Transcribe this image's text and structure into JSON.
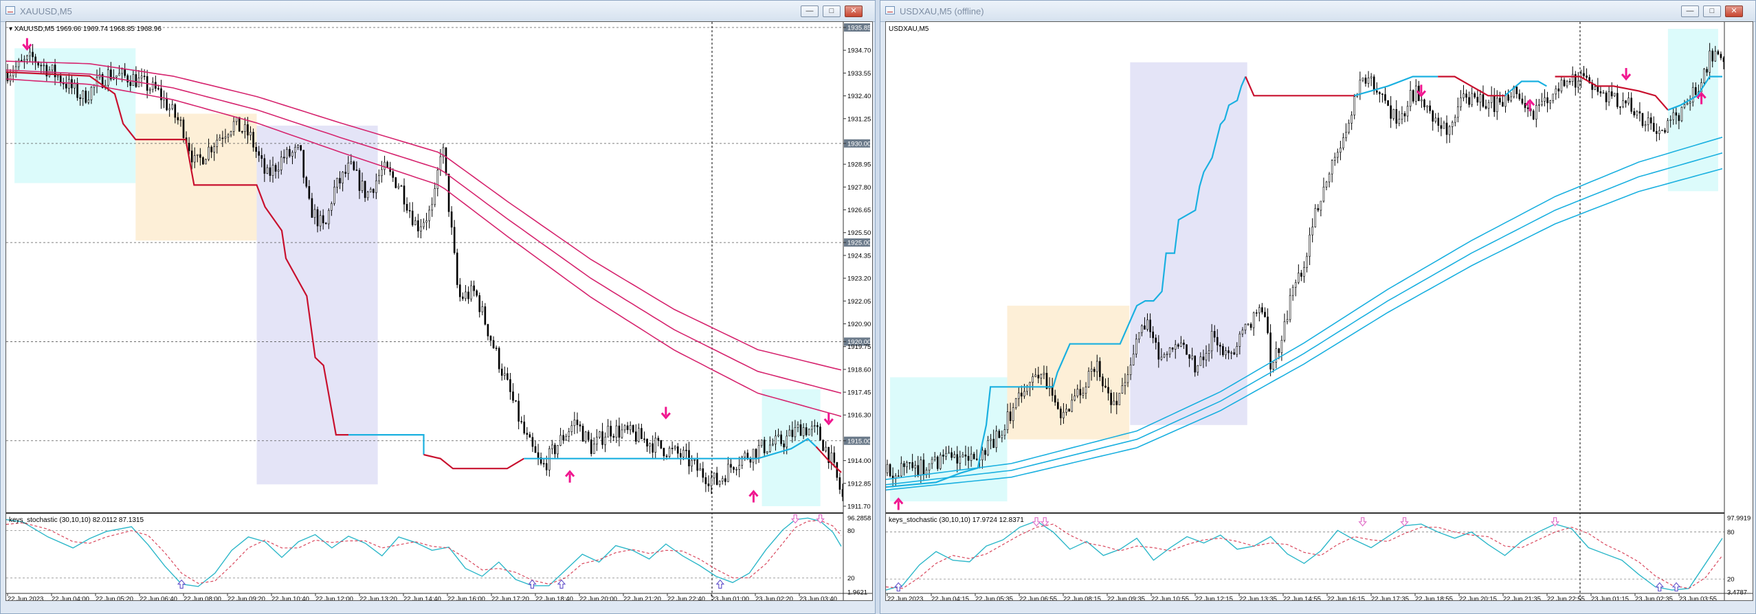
{
  "windows": [
    {
      "title": "XAUUSD,M5",
      "symbol_label": "XAUUSD,M5",
      "ohlc_readout": "1969.66 1969.74 1968.85 1968.96",
      "indicator_label": "keys_stochastic (30,10,10) 82.0112 87.1315",
      "price_ticks": [
        "1935.85",
        "1934.70",
        "1933.55",
        "1932.40",
        "1931.25",
        "1930.00",
        "1928.95",
        "1927.80",
        "1926.65",
        "1925.50",
        "1925.00",
        "1924.35",
        "1923.20",
        "1922.05",
        "1920.90",
        "1920.00",
        "1919.75",
        "1918.60",
        "1917.45",
        "1916.30",
        "1915.00",
        "1914.00",
        "1912.85",
        "1911.70"
      ],
      "highlighted_ticks": [
        "1935.85",
        "1930.00",
        "1925.00",
        "1920.00",
        "1915.00"
      ],
      "stoch_ticks": [
        "96.2858",
        "80",
        "20",
        "1.9621"
      ],
      "time_ticks": [
        "22 Jun 2023",
        "22 Jun 04:00",
        "22 Jun 05:20",
        "22 Jun 06:40",
        "22 Jun 08:00",
        "22 Jun 09:20",
        "22 Jun 10:40",
        "22 Jun 12:00",
        "22 Jun 13:20",
        "22 Jun 14:40",
        "22 Jun 16:00",
        "22 Jun 17:20",
        "22 Jun 18:40",
        "22 Jun 20:00",
        "22 Jun 21:20",
        "22 Jun 22:40",
        "23 Jun 01:00",
        "23 Jun 02:20",
        "23 Jun 03:40"
      ]
    },
    {
      "title": "USDXAU,M5 (offline)",
      "symbol_label": "USDXAU,M5",
      "indicator_label": "keys_stochastic (30,10,10) 17.9724 12.8371",
      "stoch_ticks": [
        "97.9919",
        "80",
        "20",
        "3.4787"
      ],
      "time_ticks": [
        "22 Jun 2023",
        "22 Jun 04:15",
        "22 Jun 05:35",
        "22 Jun 06:55",
        "22 Jun 08:15",
        "22 Jun 09:35",
        "22 Jun 10:55",
        "22 Jun 12:15",
        "22 Jun 13:35",
        "22 Jun 14:55",
        "22 Jun 16:15",
        "22 Jun 17:35",
        "22 Jun 18:55",
        "22 Jun 20:15",
        "22 Jun 21:35",
        "22 Jun 22:55",
        "23 Jun 01:15",
        "23 Jun 02:35",
        "23 Jun 03:55"
      ]
    }
  ],
  "window_buttons": {
    "minimize": "—",
    "maximize": "□",
    "close": "✕"
  },
  "colors": {
    "candle": "#000000",
    "ema_band": "#d6246e",
    "trail_down": "#c8102e",
    "trail_up": "#1ab0e0",
    "arrow": "#f0168f",
    "stoch_main": "#2cb7c9",
    "stoch_signal": "#d9475d",
    "zone_cyan": "#dcfbfb",
    "zone_orange": "#fdefd7",
    "zone_lavender": "#e4e4f7",
    "stoch_arrow": "#6a5acd",
    "stoch_arrow_top": "#e070c8"
  },
  "chart_data": [
    {
      "type": "candlestick",
      "title": "XAUUSD,M5",
      "ylim": [
        1911.7,
        1935.85
      ],
      "x": [
        "22 Jun 2023",
        "22 Jun 04:00",
        "22 Jun 05:20",
        "22 Jun 06:40",
        "22 Jun 08:00",
        "22 Jun 09:20",
        "22 Jun 10:40",
        "22 Jun 12:00",
        "22 Jun 13:20",
        "22 Jun 14:40",
        "22 Jun 16:00",
        "22 Jun 17:20",
        "22 Jun 18:40",
        "22 Jun 20:00",
        "22 Jun 21:20",
        "22 Jun 22:40",
        "23 Jun 01:00",
        "23 Jun 02:20",
        "23 Jun 03:40"
      ],
      "close_path": [
        [
          0,
          1933.6
        ],
        [
          0.03,
          1934.3
        ],
        [
          0.06,
          1933.4
        ],
        [
          0.09,
          1932.3
        ],
        [
          0.12,
          1933.5
        ],
        [
          0.15,
          1933.3
        ],
        [
          0.18,
          1932.6
        ],
        [
          0.21,
          1930.8
        ],
        [
          0.225,
          1928.9
        ],
        [
          0.25,
          1930.2
        ],
        [
          0.27,
          1931.0
        ],
        [
          0.29,
          1930.4
        ],
        [
          0.31,
          1928.3
        ],
        [
          0.33,
          1929.3
        ],
        [
          0.35,
          1929.6
        ],
        [
          0.36,
          1926.9
        ],
        [
          0.38,
          1925.6
        ],
        [
          0.39,
          1927.6
        ],
        [
          0.41,
          1928.8
        ],
        [
          0.43,
          1927.4
        ],
        [
          0.45,
          1928.7
        ],
        [
          0.47,
          1927.9
        ],
        [
          0.49,
          1925.8
        ],
        [
          0.51,
          1926.7
        ],
        [
          0.52,
          1930.2
        ],
        [
          0.54,
          1922.2
        ],
        [
          0.56,
          1922.5
        ],
        [
          0.58,
          1920.0
        ],
        [
          0.6,
          1917.6
        ],
        [
          0.62,
          1915.2
        ],
        [
          0.64,
          1913.6
        ],
        [
          0.66,
          1914.9
        ],
        [
          0.68,
          1916.0
        ],
        [
          0.7,
          1914.6
        ],
        [
          0.72,
          1915.6
        ],
        [
          0.75,
          1915.3
        ],
        [
          0.78,
          1914.7
        ],
        [
          0.81,
          1914.2
        ],
        [
          0.83,
          1913.4
        ],
        [
          0.85,
          1912.9
        ],
        [
          0.87,
          1913.9
        ],
        [
          0.9,
          1914.6
        ],
        [
          0.93,
          1915.0
        ],
        [
          0.95,
          1915.7
        ],
        [
          0.97,
          1915.4
        ],
        [
          0.985,
          1914.2
        ],
        [
          1.0,
          1912.1
        ]
      ],
      "ema_band_center": [
        [
          0,
          1933.7
        ],
        [
          0.1,
          1933.5
        ],
        [
          0.2,
          1932.8
        ],
        [
          0.3,
          1931.7
        ],
        [
          0.4,
          1930.3
        ],
        [
          0.52,
          1928.7
        ],
        [
          0.6,
          1926.2
        ],
        [
          0.7,
          1923.2
        ],
        [
          0.8,
          1920.6
        ],
        [
          0.9,
          1918.5
        ],
        [
          1.0,
          1917.4
        ]
      ],
      "annotations": [
        {
          "type": "arrow_down",
          "x": 0.025,
          "y": 1935.0
        },
        {
          "type": "arrow_up",
          "x": 0.675,
          "y": 1913.2
        },
        {
          "type": "arrow_down",
          "x": 0.79,
          "y": 1916.4
        },
        {
          "type": "arrow_up",
          "x": 0.895,
          "y": 1912.2
        },
        {
          "type": "arrow_down",
          "x": 0.985,
          "y": 1916.1
        }
      ],
      "stochastic": {
        "levels": [
          80,
          20
        ],
        "ylim": [
          1.9621,
          96.2858
        ],
        "main": [
          [
            0,
            94
          ],
          [
            0.02,
            91
          ],
          [
            0.05,
            72
          ],
          [
            0.08,
            58
          ],
          [
            0.1,
            70
          ],
          [
            0.12,
            79
          ],
          [
            0.15,
            85
          ],
          [
            0.17,
            62
          ],
          [
            0.19,
            35
          ],
          [
            0.21,
            12
          ],
          [
            0.23,
            9
          ],
          [
            0.25,
            26
          ],
          [
            0.27,
            55
          ],
          [
            0.29,
            72
          ],
          [
            0.31,
            66
          ],
          [
            0.33,
            46
          ],
          [
            0.35,
            66
          ],
          [
            0.37,
            75
          ],
          [
            0.39,
            58
          ],
          [
            0.41,
            73
          ],
          [
            0.43,
            64
          ],
          [
            0.45,
            48
          ],
          [
            0.47,
            72
          ],
          [
            0.49,
            65
          ],
          [
            0.51,
            55
          ],
          [
            0.53,
            59
          ],
          [
            0.55,
            32
          ],
          [
            0.57,
            22
          ],
          [
            0.59,
            40
          ],
          [
            0.61,
            18
          ],
          [
            0.63,
            10
          ],
          [
            0.65,
            10
          ],
          [
            0.67,
            30
          ],
          [
            0.69,
            50
          ],
          [
            0.71,
            40
          ],
          [
            0.73,
            61
          ],
          [
            0.75,
            55
          ],
          [
            0.77,
            44
          ],
          [
            0.79,
            63
          ],
          [
            0.81,
            48
          ],
          [
            0.83,
            36
          ],
          [
            0.85,
            22
          ],
          [
            0.87,
            14
          ],
          [
            0.89,
            26
          ],
          [
            0.91,
            56
          ],
          [
            0.93,
            81
          ],
          [
            0.945,
            94
          ],
          [
            0.96,
            96
          ],
          [
            0.975,
            92
          ],
          [
            0.99,
            78
          ],
          [
            1.0,
            60
          ]
        ],
        "signal": [
          [
            0,
            88
          ],
          [
            0.02,
            90
          ],
          [
            0.05,
            82
          ],
          [
            0.08,
            66
          ],
          [
            0.1,
            64
          ],
          [
            0.12,
            72
          ],
          [
            0.15,
            80
          ],
          [
            0.17,
            74
          ],
          [
            0.19,
            52
          ],
          [
            0.21,
            26
          ],
          [
            0.23,
            13
          ],
          [
            0.25,
            16
          ],
          [
            0.27,
            36
          ],
          [
            0.29,
            58
          ],
          [
            0.31,
            68
          ],
          [
            0.33,
            58
          ],
          [
            0.35,
            58
          ],
          [
            0.37,
            68
          ],
          [
            0.39,
            65
          ],
          [
            0.41,
            67
          ],
          [
            0.43,
            67
          ],
          [
            0.45,
            58
          ],
          [
            0.47,
            62
          ],
          [
            0.49,
            66
          ],
          [
            0.51,
            60
          ],
          [
            0.53,
            58
          ],
          [
            0.55,
            45
          ],
          [
            0.57,
            30
          ],
          [
            0.59,
            32
          ],
          [
            0.61,
            27
          ],
          [
            0.63,
            17
          ],
          [
            0.65,
            12
          ],
          [
            0.67,
            20
          ],
          [
            0.69,
            38
          ],
          [
            0.71,
            43
          ],
          [
            0.73,
            52
          ],
          [
            0.75,
            56
          ],
          [
            0.77,
            51
          ],
          [
            0.79,
            55
          ],
          [
            0.81,
            54
          ],
          [
            0.83,
            44
          ],
          [
            0.85,
            31
          ],
          [
            0.87,
            20
          ],
          [
            0.89,
            20
          ],
          [
            0.91,
            38
          ],
          [
            0.93,
            64
          ],
          [
            0.945,
            84
          ],
          [
            0.96,
            92
          ],
          [
            0.975,
            93
          ],
          [
            0.99,
            86
          ],
          [
            1.0,
            74
          ]
        ]
      }
    },
    {
      "type": "candlestick",
      "title": "USDXAU,M5 (offline)",
      "stochastic": {
        "levels": [
          80,
          20
        ],
        "ylim": [
          3.4787,
          97.9919
        ],
        "main": [
          [
            0,
            6
          ],
          [
            0.02,
            12
          ],
          [
            0.04,
            38
          ],
          [
            0.06,
            55
          ],
          [
            0.08,
            44
          ],
          [
            0.1,
            42
          ],
          [
            0.12,
            62
          ],
          [
            0.14,
            70
          ],
          [
            0.16,
            86
          ],
          [
            0.18,
            94
          ],
          [
            0.2,
            80
          ],
          [
            0.22,
            58
          ],
          [
            0.24,
            68
          ],
          [
            0.26,
            50
          ],
          [
            0.28,
            58
          ],
          [
            0.3,
            72
          ],
          [
            0.32,
            44
          ],
          [
            0.34,
            60
          ],
          [
            0.36,
            74
          ],
          [
            0.38,
            66
          ],
          [
            0.4,
            76
          ],
          [
            0.42,
            58
          ],
          [
            0.44,
            62
          ],
          [
            0.46,
            74
          ],
          [
            0.48,
            52
          ],
          [
            0.5,
            40
          ],
          [
            0.52,
            56
          ],
          [
            0.54,
            82
          ],
          [
            0.56,
            70
          ],
          [
            0.58,
            60
          ],
          [
            0.6,
            74
          ],
          [
            0.62,
            88
          ],
          [
            0.64,
            90
          ],
          [
            0.66,
            80
          ],
          [
            0.68,
            72
          ],
          [
            0.7,
            80
          ],
          [
            0.72,
            64
          ],
          [
            0.74,
            50
          ],
          [
            0.76,
            68
          ],
          [
            0.78,
            80
          ],
          [
            0.8,
            90
          ],
          [
            0.82,
            84
          ],
          [
            0.84,
            60
          ],
          [
            0.86,
            52
          ],
          [
            0.88,
            44
          ],
          [
            0.9,
            26
          ],
          [
            0.92,
            10
          ],
          [
            0.94,
            6
          ],
          [
            0.96,
            8
          ],
          [
            0.98,
            40
          ],
          [
            1.0,
            72
          ]
        ],
        "signal": [
          [
            0,
            10
          ],
          [
            0.02,
            8
          ],
          [
            0.04,
            22
          ],
          [
            0.06,
            40
          ],
          [
            0.08,
            50
          ],
          [
            0.1,
            46
          ],
          [
            0.12,
            52
          ],
          [
            0.14,
            64
          ],
          [
            0.16,
            76
          ],
          [
            0.18,
            86
          ],
          [
            0.2,
            90
          ],
          [
            0.22,
            76
          ],
          [
            0.24,
            66
          ],
          [
            0.26,
            62
          ],
          [
            0.28,
            56
          ],
          [
            0.3,
            62
          ],
          [
            0.32,
            60
          ],
          [
            0.34,
            56
          ],
          [
            0.36,
            64
          ],
          [
            0.38,
            70
          ],
          [
            0.4,
            72
          ],
          [
            0.42,
            68
          ],
          [
            0.44,
            62
          ],
          [
            0.46,
            66
          ],
          [
            0.48,
            64
          ],
          [
            0.5,
            54
          ],
          [
            0.52,
            50
          ],
          [
            0.54,
            64
          ],
          [
            0.56,
            74
          ],
          [
            0.58,
            70
          ],
          [
            0.6,
            68
          ],
          [
            0.62,
            78
          ],
          [
            0.64,
            86
          ],
          [
            0.66,
            86
          ],
          [
            0.68,
            80
          ],
          [
            0.7,
            76
          ],
          [
            0.72,
            74
          ],
          [
            0.74,
            62
          ],
          [
            0.76,
            60
          ],
          [
            0.78,
            70
          ],
          [
            0.8,
            80
          ],
          [
            0.82,
            86
          ],
          [
            0.84,
            78
          ],
          [
            0.86,
            64
          ],
          [
            0.88,
            54
          ],
          [
            0.9,
            42
          ],
          [
            0.92,
            24
          ],
          [
            0.94,
            12
          ],
          [
            0.96,
            8
          ],
          [
            0.98,
            22
          ],
          [
            1.0,
            50
          ]
        ]
      },
      "annotations": [
        {
          "type": "arrow_up",
          "x": 0.015
        },
        {
          "type": "arrow_down",
          "x": 0.64
        },
        {
          "type": "arrow_up",
          "x": 0.77
        },
        {
          "type": "arrow_down",
          "x": 0.885
        },
        {
          "type": "arrow_up",
          "x": 0.975
        }
      ]
    }
  ]
}
